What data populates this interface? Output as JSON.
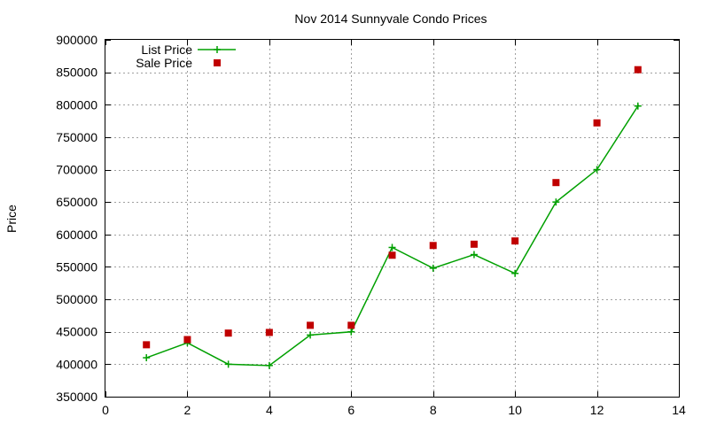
{
  "chart_data": {
    "type": "line",
    "title": "Nov 2014 Sunnyvale Condo Prices",
    "xlabel": "",
    "ylabel": "Price",
    "xlim": [
      0,
      14
    ],
    "ylim": [
      350000,
      900000
    ],
    "x_ticks": [
      0,
      2,
      4,
      6,
      8,
      10,
      12,
      14
    ],
    "y_ticks": [
      350000,
      400000,
      450000,
      500000,
      550000,
      600000,
      650000,
      700000,
      750000,
      800000,
      850000,
      900000
    ],
    "grid": true,
    "legend_position": "top-left",
    "series": [
      {
        "name": "List Price",
        "style": "line-with-plus-markers",
        "color": "#00a000",
        "x": [
          1,
          2,
          3,
          4,
          5,
          6,
          7,
          8,
          9,
          10,
          11,
          12,
          13
        ],
        "values": [
          410000,
          433000,
          400000,
          398000,
          445000,
          450000,
          580000,
          548000,
          569000,
          540000,
          650000,
          700000,
          798000
        ]
      },
      {
        "name": "Sale Price",
        "style": "square-markers",
        "color": "#c00000",
        "x": [
          1,
          2,
          3,
          4,
          5,
          6,
          7,
          8,
          9,
          10,
          11,
          12,
          13
        ],
        "values": [
          430000,
          438000,
          448000,
          449000,
          460000,
          460000,
          568000,
          583000,
          585000,
          590000,
          680000,
          772000,
          854000
        ]
      }
    ]
  }
}
